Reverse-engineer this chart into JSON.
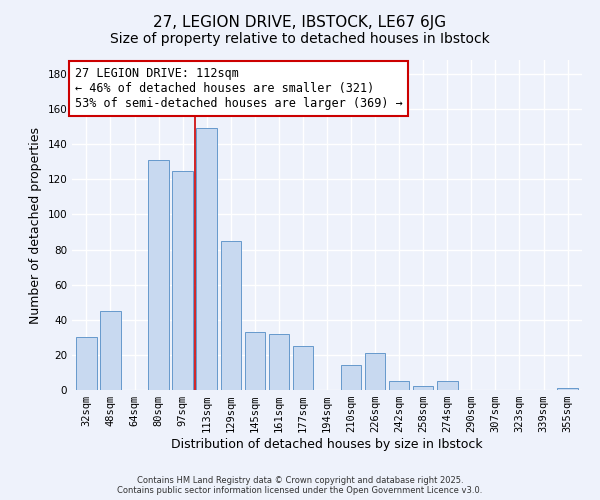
{
  "title": "27, LEGION DRIVE, IBSTOCK, LE67 6JG",
  "subtitle": "Size of property relative to detached houses in Ibstock",
  "xlabel": "Distribution of detached houses by size in Ibstock",
  "ylabel": "Number of detached properties",
  "bar_labels": [
    "32sqm",
    "48sqm",
    "64sqm",
    "80sqm",
    "97sqm",
    "113sqm",
    "129sqm",
    "145sqm",
    "161sqm",
    "177sqm",
    "194sqm",
    "210sqm",
    "226sqm",
    "242sqm",
    "258sqm",
    "274sqm",
    "290sqm",
    "307sqm",
    "323sqm",
    "339sqm",
    "355sqm"
  ],
  "bar_values": [
    30,
    45,
    0,
    131,
    125,
    149,
    85,
    33,
    32,
    25,
    0,
    14,
    21,
    5,
    2,
    5,
    0,
    0,
    0,
    0,
    1
  ],
  "bar_color": "#c8d9f0",
  "bar_edge_color": "#6699cc",
  "vline_x": 4.5,
  "vline_color": "#cc0000",
  "annotation_text": "27 LEGION DRIVE: 112sqm\n← 46% of detached houses are smaller (321)\n53% of semi-detached houses are larger (369) →",
  "annotation_box_color": "#ffffff",
  "annotation_box_edge_color": "#cc0000",
  "ylim": [
    0,
    188
  ],
  "yticks": [
    0,
    20,
    40,
    60,
    80,
    100,
    120,
    140,
    160,
    180
  ],
  "footer1": "Contains HM Land Registry data © Crown copyright and database right 2025.",
  "footer2": "Contains public sector information licensed under the Open Government Licence v3.0.",
  "bg_color": "#eef2fb",
  "grid_color": "#ffffff",
  "title_fontsize": 11,
  "axis_label_fontsize": 9,
  "tick_fontsize": 7.5,
  "annotation_fontsize": 8.5
}
